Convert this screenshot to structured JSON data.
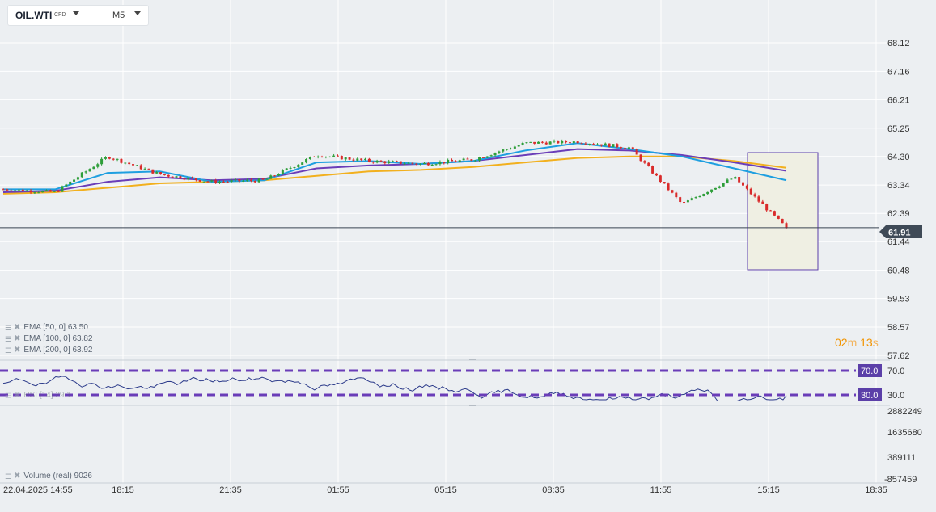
{
  "symbol": {
    "name": "OIL.WTI",
    "type": "CFD",
    "timeframe": "M5",
    "dropdown_icon": "chevron-down-icon"
  },
  "price_axis": [
    "68.12",
    "67.16",
    "66.21",
    "65.25",
    "64.30",
    "63.34",
    "62.39",
    "61.44",
    "60.48",
    "59.53",
    "58.57",
    "57.62"
  ],
  "current_price": "61.91",
  "time_axis": [
    "22.04.2025 14:55",
    "18:15",
    "21:35",
    "01:55",
    "05:15",
    "08:35",
    "11:55",
    "15:15",
    "18:35"
  ],
  "indicators": [
    {
      "label": "EMA [50, 0]",
      "value": "63.50",
      "color": "#1e9fe0"
    },
    {
      "label": "EMA [100, 0]",
      "value": "63.82",
      "color": "#6a3db8"
    },
    {
      "label": "EMA [200, 0]",
      "value": "63.92",
      "color": "#f2b01e"
    }
  ],
  "rsi": {
    "label": "RSI [14]",
    "value": "29.1",
    "upper": "70.0",
    "lower": "30.0"
  },
  "volume": {
    "label": "Volume (real)",
    "value": "9026",
    "axis": [
      "2882249",
      "1635680",
      "389111",
      "-857459"
    ]
  },
  "timer": {
    "minutes": "02",
    "m": "m",
    "seconds": "13",
    "s": "s"
  },
  "colors": {
    "up": "#2e9e3a",
    "down": "#d92b2b",
    "rsi_line": "#2b3a8a",
    "rsi_levels": "#6a3db8",
    "highlight_border": "#5b3fa8",
    "highlight_fill": "#efefe3",
    "price_line": "#3a4452",
    "price_tag": "#3f4a57"
  },
  "chart_data": {
    "type": "candlestick",
    "x": [
      "14:55",
      "16:35",
      "18:15",
      "19:55",
      "21:35",
      "23:15",
      "01:55",
      "03:35",
      "05:15",
      "06:55",
      "08:35",
      "10:15",
      "11:55",
      "13:35",
      "15:15",
      "16:00"
    ],
    "close": [
      63.2,
      63.1,
      64.3,
      63.7,
      63.45,
      63.5,
      64.35,
      64.15,
      64.05,
      64.2,
      64.75,
      64.8,
      64.6,
      62.7,
      63.6,
      61.9
    ],
    "ema50": [
      63.2,
      63.2,
      63.75,
      63.8,
      63.45,
      63.5,
      64.1,
      64.15,
      64.05,
      64.15,
      64.5,
      64.75,
      64.55,
      64.3,
      63.9,
      63.5
    ],
    "ema100": [
      63.1,
      63.15,
      63.45,
      63.6,
      63.5,
      63.55,
      63.9,
      64.0,
      64.05,
      64.15,
      64.35,
      64.55,
      64.5,
      64.35,
      64.1,
      63.82
    ],
    "ema200": [
      63.05,
      63.1,
      63.25,
      63.4,
      63.45,
      63.5,
      63.65,
      63.8,
      63.85,
      63.95,
      64.1,
      64.25,
      64.3,
      64.3,
      64.15,
      63.92
    ],
    "ylim": [
      57.62,
      68.12
    ]
  }
}
